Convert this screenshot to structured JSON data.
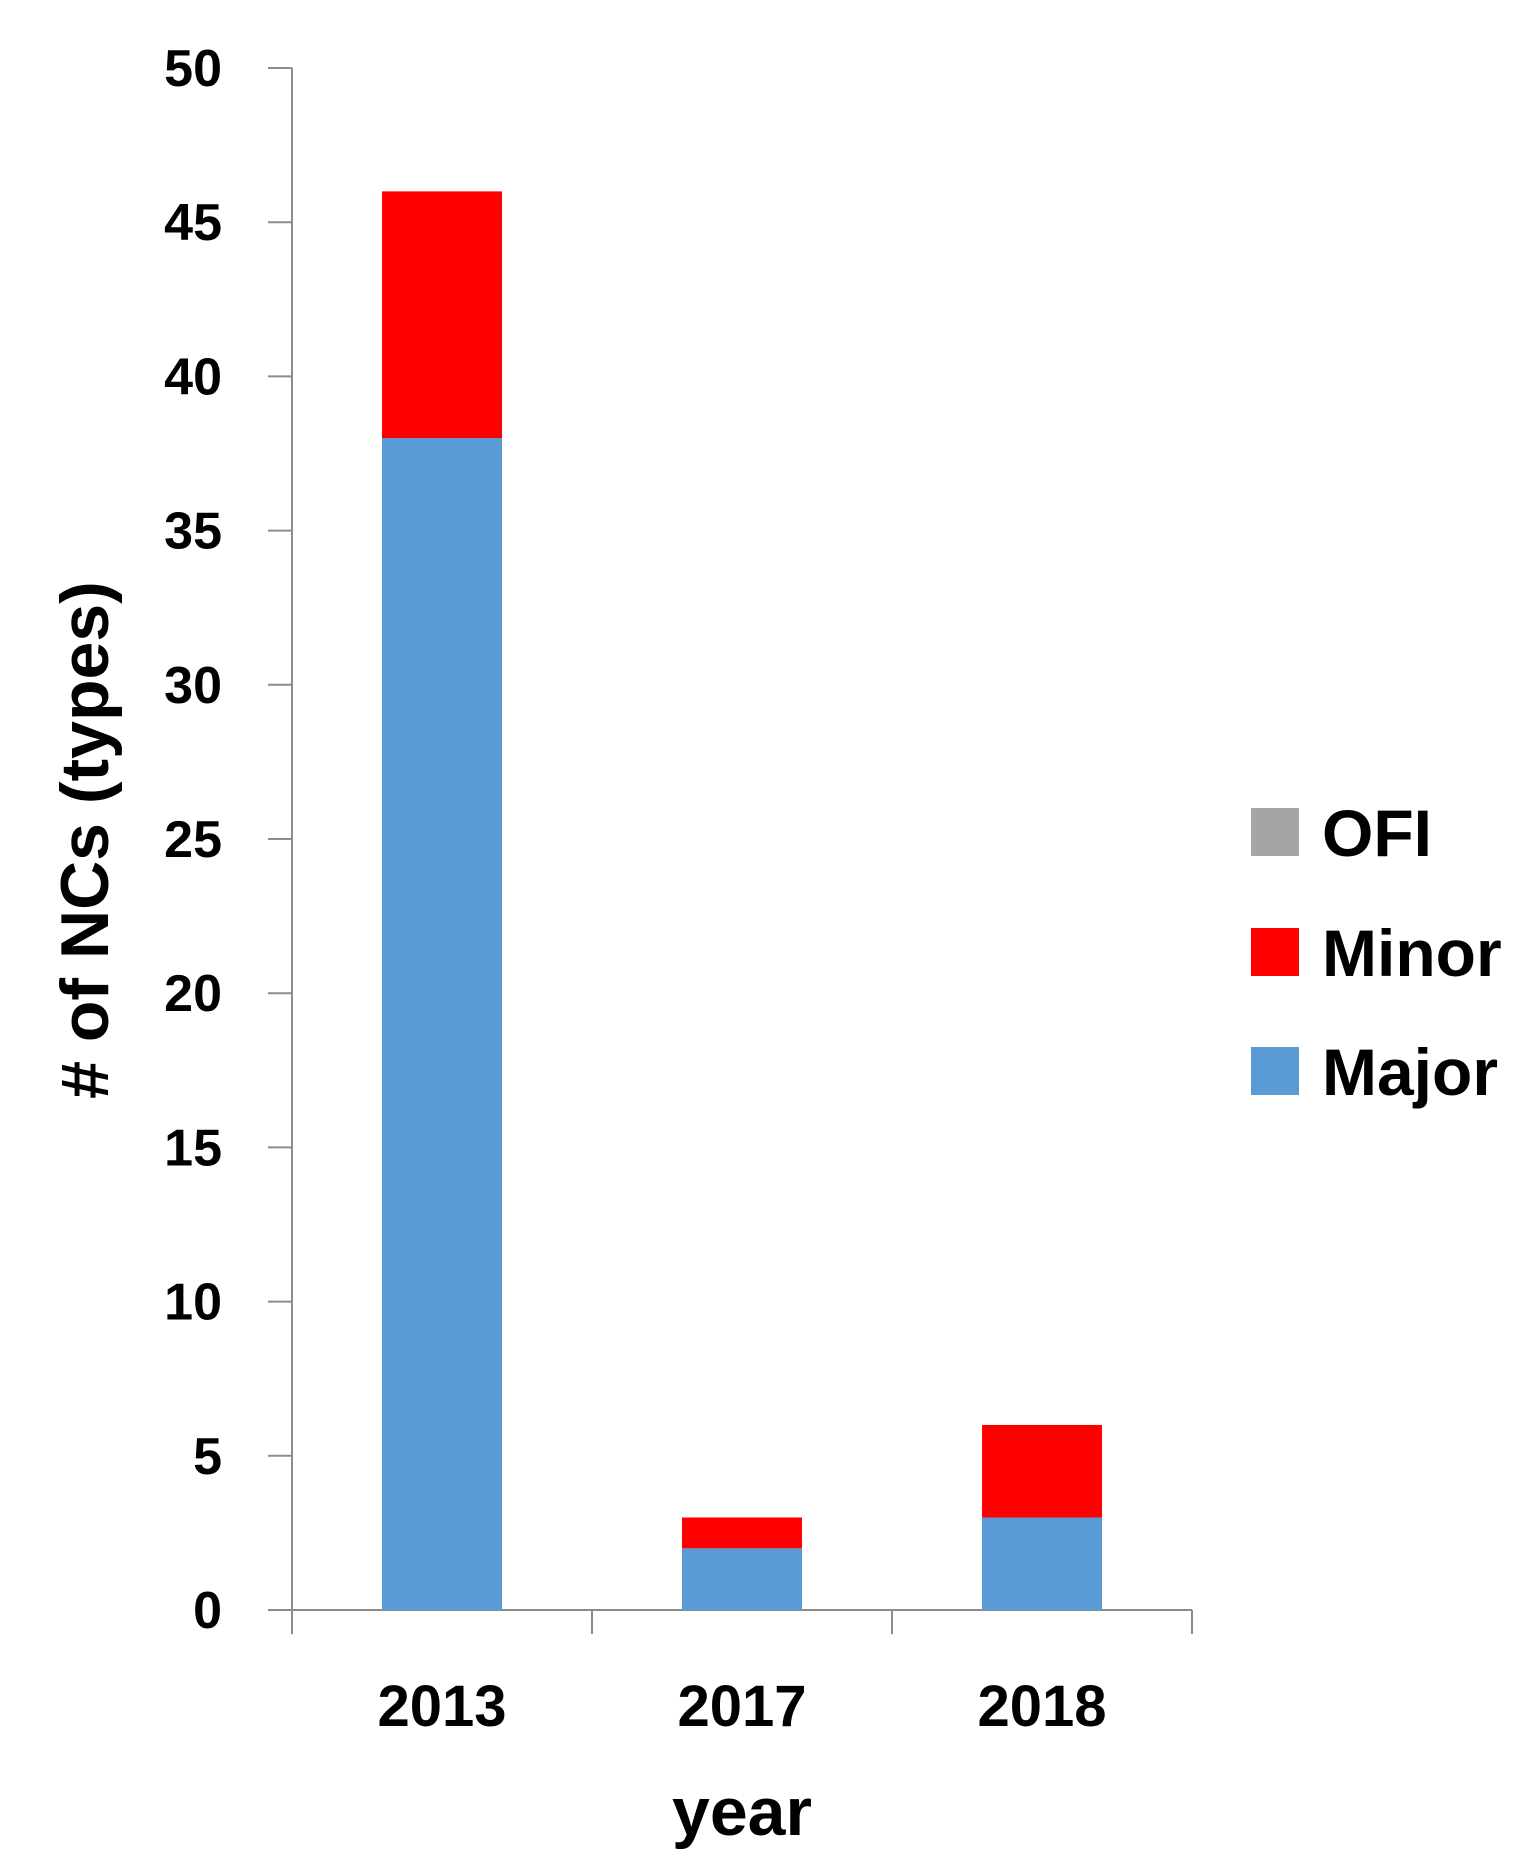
{
  "chart_data": {
    "type": "bar",
    "stacked": true,
    "title": "",
    "xlabel": "year",
    "ylabel": "# of NCs (types)",
    "categories": [
      "2013",
      "2017",
      "2018"
    ],
    "series": [
      {
        "name": "Major",
        "color": "#5B9BD5",
        "values": [
          38,
          2,
          3
        ]
      },
      {
        "name": "Minor",
        "color": "#FF0000",
        "values": [
          8,
          1,
          3
        ]
      },
      {
        "name": "OFI",
        "color": "#A5A5A5",
        "values": [
          0,
          0,
          0
        ]
      }
    ],
    "legend_order": [
      "OFI",
      "Minor",
      "Major"
    ],
    "legend_placement": "right",
    "ylim": [
      0,
      50
    ],
    "yticks": [
      0,
      5,
      10,
      15,
      20,
      25,
      30,
      35,
      40,
      45,
      50
    ],
    "grid": false
  }
}
